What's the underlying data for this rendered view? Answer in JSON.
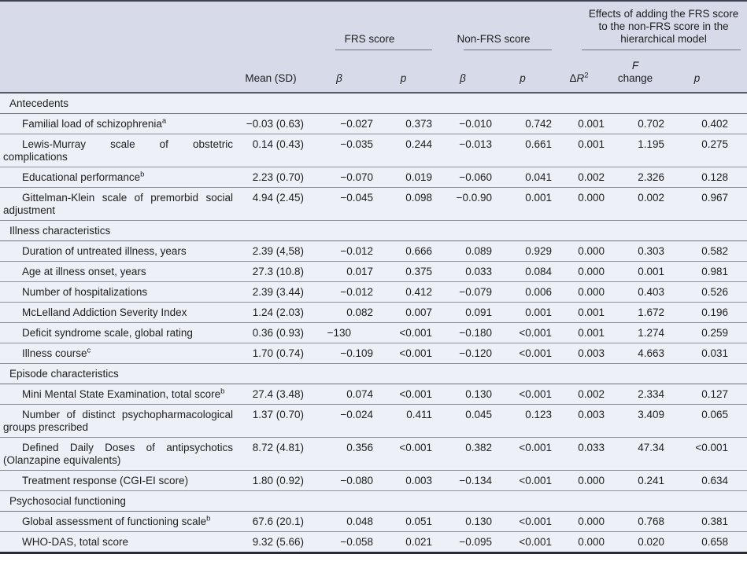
{
  "table": {
    "header": {
      "mean_label": "Mean (SD)",
      "beta_label": "β",
      "p_label": "p",
      "delta_label": "Δ",
      "r_label": "R",
      "r_sup": "2",
      "f_label": "F",
      "change_label": "change",
      "spanners": [
        {
          "label": "FRS score"
        },
        {
          "label": "Non-FRS score"
        },
        {
          "label": "Effects of adding the FRS score to the non-FRS score in the hierarchical model"
        }
      ]
    },
    "value_keys": [
      "mean",
      "frs_beta",
      "frs_p",
      "nonfrs_beta",
      "nonfrs_p",
      "delta_r2",
      "f_change",
      "p"
    ],
    "colors": {
      "header_bg": "#d7dbe9",
      "body_bg": "#edf0f7",
      "rule_top": "#3d4454",
      "rule_bottom": "#272c35"
    },
    "sections": [
      {
        "title": "Antecedents",
        "rows": [
          {
            "label": "Familial load of schizophrenia",
            "sup": "a",
            "mean": "−0.03 (0.63)",
            "frs_beta": "−0.027",
            "frs_p": "0.373",
            "nonfrs_beta": "−0.010",
            "nonfrs_p": "0.742",
            "delta_r2": "0.001",
            "f_change": "0.702",
            "p": "0.402"
          },
          {
            "label": "Lewis-Murray scale of obstetric complications",
            "sup": "",
            "mean": "0.14 (0.43)",
            "frs_beta": "−0.035",
            "frs_p": "0.244",
            "nonfrs_beta": "−0.013",
            "nonfrs_p": "0.661",
            "delta_r2": "0.001",
            "f_change": "1.195",
            "p": "0.275"
          },
          {
            "label": "Educational performance",
            "sup": "b",
            "mean": "2.23 (0.70)",
            "frs_beta": "−0.070",
            "frs_p": "0.019",
            "nonfrs_beta": "−0.060",
            "nonfrs_p": "0.041",
            "delta_r2": "0.002",
            "f_change": "2.326",
            "p": "0.128"
          },
          {
            "label": "Gittelman-Klein scale of premorbid social adjustment",
            "sup": "",
            "mean": "4.94 (2.45)",
            "frs_beta": "−0.045",
            "frs_p": "0.098",
            "nonfrs_beta": "−0.0.90",
            "nonfrs_p": "0.001",
            "delta_r2": "0.000",
            "f_change": "0.002",
            "p": "0.967"
          }
        ]
      },
      {
        "title": "Illness characteristics",
        "rows": [
          {
            "label": "Duration of untreated illness, years",
            "sup": "",
            "mean": "2.39 (4,58)",
            "frs_beta": "−0.012",
            "frs_p": "0.666",
            "nonfrs_beta": "0.089",
            "nonfrs_p": "0.929",
            "delta_r2": "0.000",
            "f_change": "0.303",
            "p": "0.582"
          },
          {
            "label": "Age at illness onset, years",
            "sup": "",
            "mean": "27.3 (10.8)",
            "frs_beta": "0.017",
            "frs_p": "0.375",
            "nonfrs_beta": "0.033",
            "nonfrs_p": "0.084",
            "delta_r2": "0.000",
            "f_change": "0.001",
            "p": "0.981"
          },
          {
            "label": "Number of hospitalizations",
            "sup": "",
            "mean": "2.39 (3.44)",
            "frs_beta": "−0.012",
            "frs_p": "0.412",
            "nonfrs_beta": "−0.079",
            "nonfrs_p": "0.006",
            "delta_r2": "0.000",
            "f_change": "0.403",
            "p": "0.526"
          },
          {
            "label": "McLelland Addiction Severity Index",
            "sup": "",
            "mean": "1.24 (2.03)",
            "frs_beta": "0.082",
            "frs_p": "0.007",
            "nonfrs_beta": "0.091",
            "nonfrs_p": "0.001",
            "delta_r2": "0.001",
            "f_change": "1.672",
            "p": "0.196"
          },
          {
            "label": "Deficit syndrome scale, global rating",
            "sup": "",
            "mean": "0.36 (0.93)",
            "frs_beta": "−130",
            "frs_p": "<0.001",
            "nonfrs_beta": "−0.180",
            "nonfrs_p": "<0.001",
            "delta_r2": "0.001",
            "f_change": "1.274",
            "p": "0.259"
          },
          {
            "label": "Illness course",
            "sup": "c",
            "mean": "1.70 (0.74)",
            "frs_beta": "−0.109",
            "frs_p": "<0.001",
            "nonfrs_beta": "−0.120",
            "nonfrs_p": "<0.001",
            "delta_r2": "0.003",
            "f_change": "4.663",
            "p": "0.031"
          }
        ]
      },
      {
        "title": "Episode characteristics",
        "rows": [
          {
            "label": "Mini Mental State Examination, total score",
            "sup": "b",
            "mean": "27.4 (3.48)",
            "frs_beta": "0.074",
            "frs_p": "<0.001",
            "nonfrs_beta": "0.130",
            "nonfrs_p": "<0.001",
            "delta_r2": "0.002",
            "f_change": "2.334",
            "p": "0.127"
          },
          {
            "label": "Number of distinct psychopharmacological groups prescribed",
            "sup": "",
            "mean": "1.37 (0.70)",
            "frs_beta": "−0.024",
            "frs_p": "0.411",
            "nonfrs_beta": "0.045",
            "nonfrs_p": "0.123",
            "delta_r2": "0.003",
            "f_change": "3.409",
            "p": "0.065"
          },
          {
            "label": "Defined Daily Doses of antipsychotics (Olanzapine equivalents)",
            "sup": "",
            "mean": "8.72 (4.81)",
            "frs_beta": "0.356",
            "frs_p": "<0.001",
            "nonfrs_beta": "0.382",
            "nonfrs_p": "<0.001",
            "delta_r2": "0.033",
            "f_change": "47.34",
            "p": "<0.001"
          },
          {
            "label": "Treatment response (CGI-EI score)",
            "sup": "",
            "mean": "1.80 (0.92)",
            "frs_beta": "−0.080",
            "frs_p": "0.003",
            "nonfrs_beta": "−0.134",
            "nonfrs_p": "<0.001",
            "delta_r2": "0.000",
            "f_change": "0.241",
            "p": "0.634"
          }
        ]
      },
      {
        "title": "Psychosocial functioning",
        "rows": [
          {
            "label": "Global assessment of functioning scale",
            "sup": "b",
            "mean": "67.6 (20.1)",
            "frs_beta": "0.048",
            "frs_p": "0.051",
            "nonfrs_beta": "0.130",
            "nonfrs_p": "<0.001",
            "delta_r2": "0.000",
            "f_change": "0.768",
            "p": "0.381"
          },
          {
            "label": "WHO-DAS, total score",
            "sup": "",
            "mean": "9.32 (5.66)",
            "frs_beta": "−0.058",
            "frs_p": "0.021",
            "nonfrs_beta": "−0.095",
            "nonfrs_p": "<0.001",
            "delta_r2": "0.000",
            "f_change": "0.020",
            "p": "0.658"
          }
        ]
      }
    ]
  }
}
